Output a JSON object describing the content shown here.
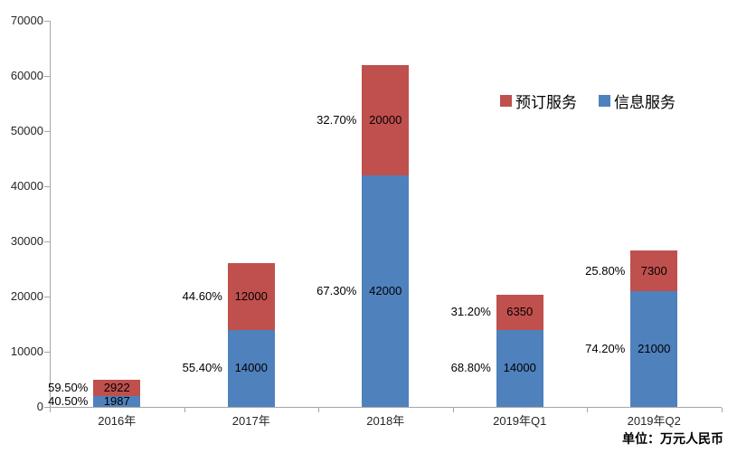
{
  "chart_data": {
    "type": "bar",
    "stacked": true,
    "title": "",
    "unit_note": "单位：万元人民币",
    "categories": [
      "2016年",
      "2017年",
      "2018年",
      "2019年Q1",
      "2019年Q2"
    ],
    "series": [
      {
        "name": "信息服务",
        "color": "#4f81bd",
        "values": [
          1987,
          14000,
          42000,
          14000,
          21000
        ],
        "value_labels": [
          "1987",
          "14000",
          "42000",
          "14000",
          "21000"
        ],
        "pct_labels": [
          "40.50%",
          "55.40%",
          "67.30%",
          "68.80%",
          "74.20%"
        ]
      },
      {
        "name": "预订服务",
        "color": "#c0504d",
        "values": [
          2922,
          12000,
          20000,
          6350,
          7300
        ],
        "value_labels": [
          "2922",
          "12000",
          "20000",
          "6350",
          "7300"
        ],
        "pct_labels": [
          "59.50%",
          "44.60%",
          "32.70%",
          "31.20%",
          "25.80%"
        ]
      }
    ],
    "legend": [
      {
        "label": "预订服务",
        "color": "#c0504d"
      },
      {
        "label": "信息服务",
        "color": "#4f81bd"
      }
    ],
    "legend_position": "upper-right-inside",
    "grid": false,
    "xlabel": "",
    "ylabel": "",
    "ylim": [
      0,
      70000
    ],
    "ytick_step": 10000,
    "yticks": [
      "0",
      "10000",
      "20000",
      "30000",
      "40000",
      "50000",
      "60000",
      "70000"
    ]
  }
}
